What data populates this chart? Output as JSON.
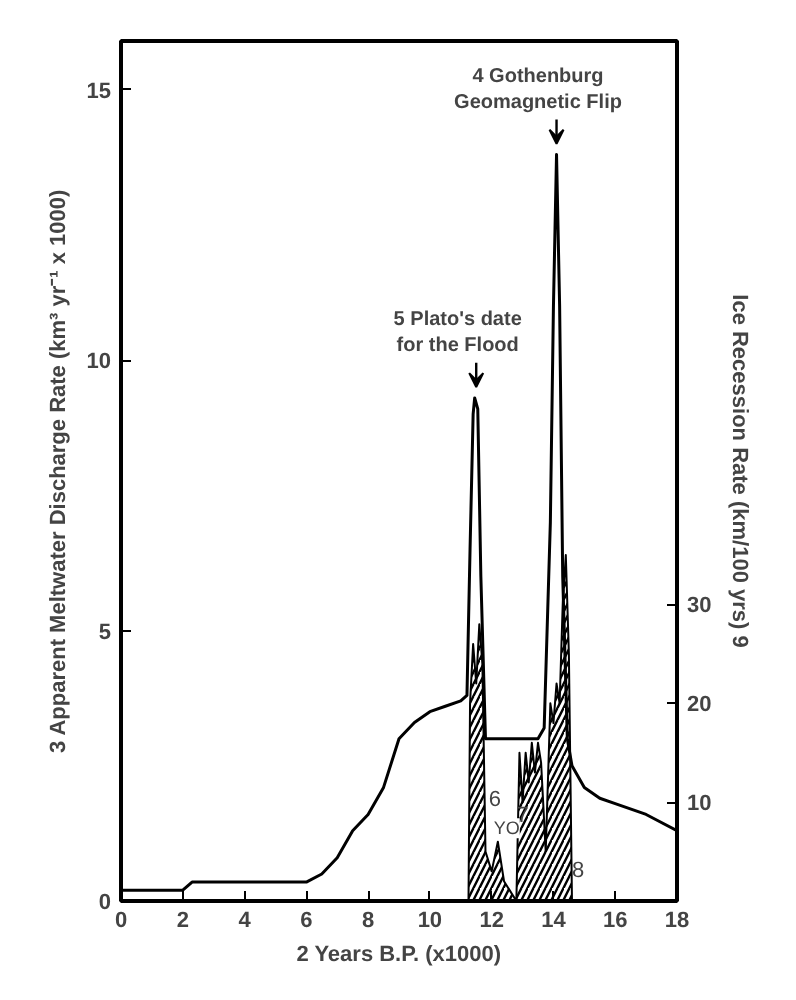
{
  "chart_data": {
    "type": "line",
    "xlabel": "2 Years B.P. (x1000)",
    "ylabel": "3 Apparent Meltwater Discharge Rate (km³ yr⁻¹ x 1000)",
    "y2label": "Ice Recession Rate (km/100 yrs) 9",
    "xlim": [
      0,
      18
    ],
    "xticks": [
      0,
      2,
      4,
      6,
      8,
      10,
      12,
      14,
      16,
      18
    ],
    "ylim": [
      0,
      15.9
    ],
    "yticks": [
      0,
      5,
      10,
      15
    ],
    "y2lim": [
      0,
      87
    ],
    "y2ticks": [
      10,
      20,
      30
    ],
    "grid": false,
    "series": [
      {
        "color": "#000000",
        "x": [
          0,
          2,
          2.3,
          4,
          6,
          6.5,
          7,
          7.5,
          8,
          8.5,
          9,
          9.5,
          10,
          10.5,
          11,
          11.2,
          11.3,
          11.4,
          11.45,
          11.55,
          11.65,
          11.8,
          12,
          13,
          13.5,
          13.7,
          13.9,
          14.0,
          14.1,
          14.2,
          14.3,
          14.45,
          14.6,
          15,
          15.5,
          16,
          17,
          18
        ],
        "values": [
          0.2,
          0.2,
          0.35,
          0.35,
          0.35,
          0.5,
          0.8,
          1.3,
          1.6,
          2.1,
          3.0,
          3.3,
          3.5,
          3.6,
          3.7,
          3.8,
          6.5,
          9.0,
          9.3,
          9.1,
          6.0,
          3.0,
          3.0,
          3.0,
          3.0,
          3.2,
          7.0,
          11.0,
          13.8,
          11.0,
          6.0,
          3.0,
          2.5,
          2.1,
          1.9,
          1.8,
          1.6,
          1.3
        ]
      },
      {
        "type": "area",
        "axis": "y2",
        "color": "#000000",
        "x": [
          11.25,
          11.3,
          11.4,
          11.5,
          11.6,
          11.7,
          11.8,
          12.0,
          12.2,
          12.4,
          12.6,
          12.8,
          12.9,
          13.0,
          13.1,
          13.2,
          13.3,
          13.4,
          13.5,
          13.6,
          13.75,
          13.9,
          14.0,
          14.1,
          14.2,
          14.3,
          14.4,
          14.5,
          14.6
        ],
        "values": [
          0,
          20,
          26,
          22,
          28,
          24,
          5,
          3,
          6,
          2,
          1,
          0,
          15,
          10,
          15,
          12,
          16,
          13,
          16,
          14,
          5,
          20,
          18,
          22,
          20,
          30,
          35,
          25,
          0
        ]
      }
    ],
    "annotations": [
      {
        "text": "4 Gothenburg\nGeomagnetic Flip",
        "x": 14.1,
        "y": 13.8
      },
      {
        "text": "5 Plato's date\nfor the Flood",
        "x": 11.5,
        "y": 9.3
      },
      {
        "text": "6",
        "x": 12.1,
        "y": 1.9
      },
      "YO",
      {
        "text": "7",
        "x": 13.0,
        "y": 1.6
      },
      {
        "text": "8",
        "x": 14.8,
        "y": 0.6
      }
    ]
  }
}
